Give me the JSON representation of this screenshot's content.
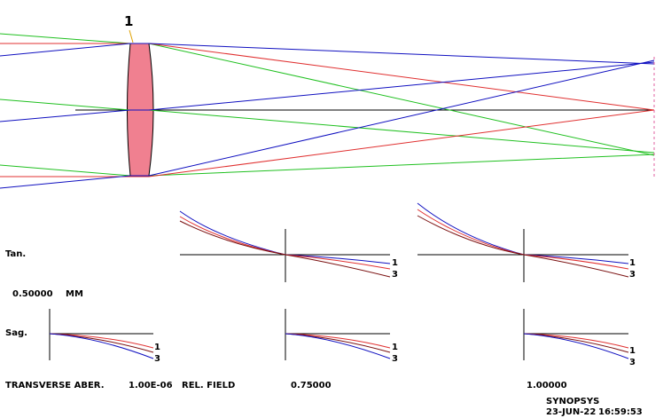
{
  "surface_label": "1",
  "labels": {
    "tan": "Tan.",
    "sag": "Sag.",
    "scale_value": "0.50000",
    "scale_unit": "MM",
    "transverse_aber": "TRANSVERSE ABER.",
    "aber_value": "1.00E-06",
    "rel_field": "REL. FIELD",
    "field_1": "0.75000",
    "field_2": "1.00000",
    "brand": "SYNOPSYS",
    "date": "23-JUN-22",
    "time": "16:59:53"
  },
  "curve_labels": {
    "a": "1",
    "b": "3"
  },
  "colors": {
    "lens_fill": "#f08090",
    "ray_red": "#e03030",
    "ray_green": "#20c020",
    "ray_blue": "#1010c0",
    "ray_black": "#000000",
    "curve_brown": "#7a1010",
    "image_plane": "#e060a0"
  }
}
